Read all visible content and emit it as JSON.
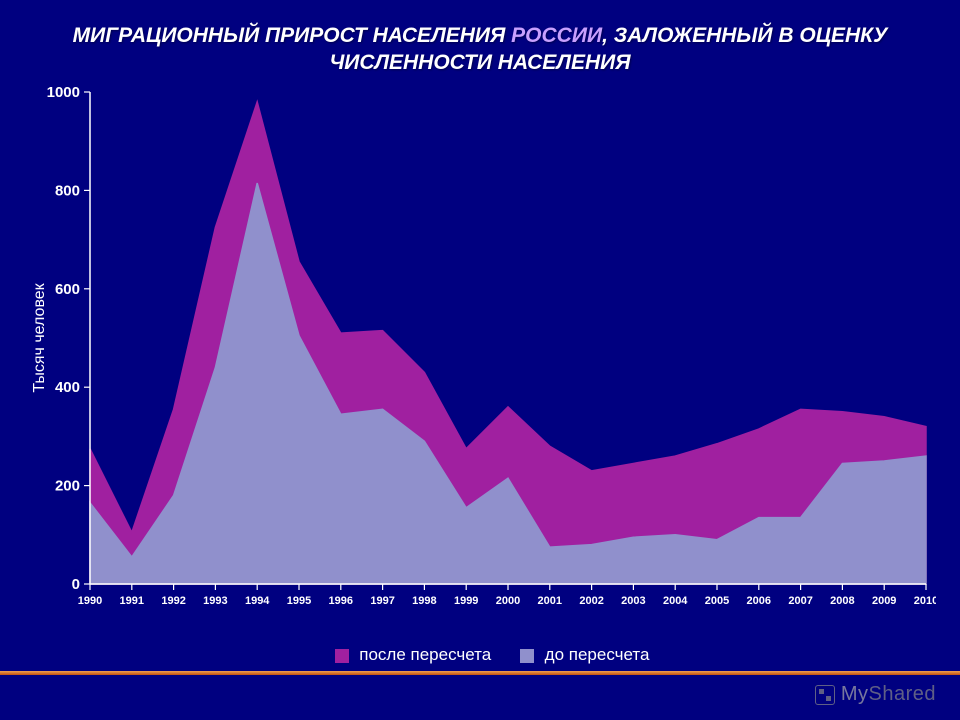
{
  "title_prefix": "МИГРАЦИОННЫЙ ПРИРОСТ НАСЕЛЕНИЯ ",
  "title_accent": "РОССИИ",
  "title_suffix": ", ЗАЛОЖЕННЫЙ В ОЦЕНКУ ЧИСЛЕННОСТИ НАСЕЛЕНИЯ",
  "chart": {
    "type": "area",
    "years": [
      1990,
      1991,
      1992,
      1993,
      1994,
      1995,
      1996,
      1997,
      1998,
      1999,
      2000,
      2001,
      2002,
      2003,
      2004,
      2005,
      2006,
      2007,
      2008,
      2009,
      2010
    ],
    "series": [
      {
        "key": "after",
        "label": "после пересчета",
        "color": "#a020a0",
        "values": [
          275,
          105,
          355,
          725,
          980,
          655,
          510,
          515,
          430,
          275,
          360,
          280,
          230,
          245,
          260,
          285,
          315,
          355,
          350,
          340,
          320
        ]
      },
      {
        "key": "before",
        "label": "до пересчета",
        "color": "#9090cc",
        "values": [
          165,
          55,
          180,
          440,
          815,
          505,
          345,
          355,
          290,
          155,
          215,
          75,
          80,
          95,
          100,
          90,
          135,
          135,
          245,
          250,
          260
        ]
      }
    ],
    "plot_bg": "#000080",
    "slide_bg": "#000080",
    "axis_color": "#ffffff",
    "tick_color": "#ffffff",
    "y_label": "Тысяч человек",
    "y_label_fontsize": 16,
    "ylim": [
      0,
      1000
    ],
    "ytick_step": 200,
    "tick_fontsize": 13,
    "x_tick_fontsize": 11,
    "line_width": 1.5
  },
  "legend": {
    "items": [
      {
        "label": "после пересчета",
        "color": "#a020a0"
      },
      {
        "label": "до пересчета",
        "color": "#9090cc"
      }
    ]
  },
  "branding": {
    "bright": "My",
    "dim": "Shared"
  }
}
